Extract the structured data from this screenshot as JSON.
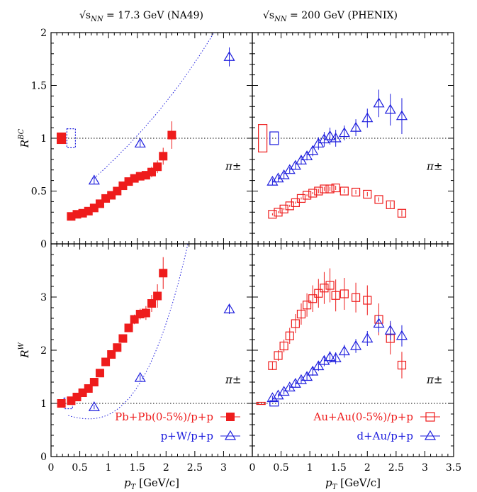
{
  "header": {
    "left_label_prefix": "√s",
    "left_label_sub": "NN",
    "left_label_suffix": " = 17.3 GeV (NA49)",
    "right_label_prefix": "√s",
    "right_label_sub": "NN",
    "right_label_suffix": " = 200 GeV (PHENIX)"
  },
  "particle_label": "π±",
  "colors": {
    "red": "#ee1c1c",
    "blue": "#1c1cdd"
  },
  "chart_data": [
    {
      "panel": "top-left",
      "type": "scatter",
      "ylabel_main": "R",
      "ylabel_sup": "BC",
      "xlim": [
        0,
        3.5
      ],
      "ylim": [
        0,
        2
      ],
      "yticks": [
        "0",
        "0.5",
        "1",
        "1.5",
        "2"
      ],
      "reference_line": 1,
      "series": [
        {
          "marker": "filled-square",
          "color": "red",
          "points": [
            [
              0.35,
              0.26
            ],
            [
              0.45,
              0.28
            ],
            [
              0.55,
              0.29
            ],
            [
              0.65,
              0.31
            ],
            [
              0.75,
              0.34
            ],
            [
              0.85,
              0.38
            ],
            [
              0.95,
              0.43
            ],
            [
              1.05,
              0.46
            ],
            [
              1.15,
              0.5
            ],
            [
              1.25,
              0.55
            ],
            [
              1.35,
              0.59
            ],
            [
              1.45,
              0.62
            ],
            [
              1.55,
              0.64
            ],
            [
              1.65,
              0.65
            ],
            [
              1.75,
              0.68
            ],
            [
              1.85,
              0.73
            ],
            [
              1.95,
              0.83
            ],
            [
              2.1,
              1.03
            ]
          ],
          "errors": [
            0.02,
            0.02,
            0.02,
            0.02,
            0.02,
            0.02,
            0.02,
            0.02,
            0.02,
            0.02,
            0.03,
            0.03,
            0.03,
            0.04,
            0.05,
            0.06,
            0.08,
            0.13
          ]
        },
        {
          "marker": "open-triangle",
          "color": "blue",
          "points": [
            [
              0.75,
              0.6
            ],
            [
              1.55,
              0.95
            ],
            [
              3.1,
              1.77
            ]
          ],
          "errors": [
            0.03,
            0.03,
            0.09
          ]
        }
      ],
      "fit_curve": {
        "color": "blue",
        "from": 0.75,
        "to": 3.5,
        "a": 0.26,
        "b": 0.47,
        "c": 0.018
      },
      "norm_boxes": [
        {
          "x": 0.18,
          "half_height": 0.05,
          "style": "filled",
          "color": "red"
        },
        {
          "x": 0.35,
          "half_height": 0.09,
          "style": "dotted",
          "color": "blue"
        }
      ]
    },
    {
      "panel": "top-right",
      "type": "scatter",
      "xlim": [
        0,
        3.5
      ],
      "ylim": [
        0,
        2
      ],
      "reference_line": 1,
      "series": [
        {
          "marker": "open-triangle",
          "color": "blue",
          "points": [
            [
              0.35,
              0.59
            ],
            [
              0.45,
              0.62
            ],
            [
              0.55,
              0.65
            ],
            [
              0.65,
              0.7
            ],
            [
              0.75,
              0.74
            ],
            [
              0.85,
              0.79
            ],
            [
              0.95,
              0.83
            ],
            [
              1.05,
              0.88
            ],
            [
              1.15,
              0.95
            ],
            [
              1.25,
              0.99
            ],
            [
              1.35,
              1.02
            ],
            [
              1.45,
              1.0
            ],
            [
              1.6,
              1.05
            ],
            [
              1.8,
              1.1
            ],
            [
              2.0,
              1.19
            ],
            [
              2.2,
              1.33
            ],
            [
              2.4,
              1.27
            ],
            [
              2.6,
              1.21
            ]
          ],
          "errors": [
            0.03,
            0.03,
            0.03,
            0.03,
            0.03,
            0.04,
            0.04,
            0.05,
            0.06,
            0.07,
            0.08,
            0.08,
            0.07,
            0.08,
            0.09,
            0.13,
            0.15,
            0.17
          ]
        },
        {
          "marker": "open-square",
          "color": "red",
          "points": [
            [
              0.35,
              0.28
            ],
            [
              0.45,
              0.3
            ],
            [
              0.55,
              0.33
            ],
            [
              0.65,
              0.36
            ],
            [
              0.75,
              0.39
            ],
            [
              0.85,
              0.43
            ],
            [
              0.95,
              0.46
            ],
            [
              1.05,
              0.48
            ],
            [
              1.15,
              0.5
            ],
            [
              1.25,
              0.52
            ],
            [
              1.35,
              0.52
            ],
            [
              1.45,
              0.53
            ],
            [
              1.6,
              0.5
            ],
            [
              1.8,
              0.49
            ],
            [
              2.0,
              0.47
            ],
            [
              2.2,
              0.42
            ],
            [
              2.4,
              0.37
            ],
            [
              2.6,
              0.29
            ]
          ],
          "errors": [
            0.01,
            0.01,
            0.01,
            0.01,
            0.01,
            0.01,
            0.01,
            0.01,
            0.02,
            0.02,
            0.02,
            0.02,
            0.02,
            0.02,
            0.02,
            0.02,
            0.03,
            0.03
          ]
        }
      ],
      "norm_boxes": [
        {
          "x": 0.18,
          "half_height": 0.13,
          "style": "open",
          "color": "red"
        },
        {
          "x": 0.38,
          "half_height": 0.06,
          "style": "open",
          "color": "blue"
        }
      ]
    },
    {
      "panel": "bottom-left",
      "type": "scatter",
      "ylabel_main": "R",
      "ylabel_sup": "W",
      "xlabel_main": "p",
      "xlabel_sub": "T",
      "xlabel_unit": "[GeV/c]",
      "xlim": [
        0,
        3.5
      ],
      "ylim": [
        0,
        4
      ],
      "yticks": [
        "0",
        "1",
        "2",
        "3"
      ],
      "xticks": [
        "0",
        "0.5",
        "1",
        "1.5",
        "2",
        "2.5",
        "3",
        ""
      ],
      "reference_line": 1,
      "series": [
        {
          "name": "Pb+Pb(0-5%)/p+p",
          "marker": "filled-square",
          "color": "red",
          "points": [
            [
              0.18,
              1.0
            ],
            [
              0.35,
              1.05
            ],
            [
              0.45,
              1.12
            ],
            [
              0.55,
              1.2
            ],
            [
              0.65,
              1.28
            ],
            [
              0.75,
              1.4
            ],
            [
              0.85,
              1.57
            ],
            [
              0.95,
              1.78
            ],
            [
              1.05,
              1.92
            ],
            [
              1.15,
              2.05
            ],
            [
              1.25,
              2.22
            ],
            [
              1.35,
              2.42
            ],
            [
              1.45,
              2.58
            ],
            [
              1.55,
              2.68
            ],
            [
              1.65,
              2.7
            ],
            [
              1.75,
              2.88
            ],
            [
              1.85,
              3.02
            ],
            [
              1.95,
              3.45
            ]
          ],
          "errors": [
            0.02,
            0.03,
            0.03,
            0.03,
            0.03,
            0.03,
            0.04,
            0.04,
            0.05,
            0.05,
            0.06,
            0.08,
            0.09,
            0.1,
            0.13,
            0.16,
            0.22,
            0.3
          ]
        },
        {
          "name": "p+W/p+p",
          "marker": "open-triangle",
          "color": "blue",
          "points": [
            [
              0.75,
              0.93
            ],
            [
              1.55,
              1.48
            ],
            [
              3.1,
              2.77
            ]
          ],
          "errors": [
            0.04,
            0.05,
            0.09
          ]
        }
      ],
      "fit_curve": {
        "color": "blue",
        "from": 0.3,
        "to": 3.5,
        "a": 0.88,
        "b": -0.39,
        "c": 0.3
      },
      "norm_boxes": [
        {
          "x": 0.3,
          "half_height": 0.1,
          "style": "dotted",
          "color": "blue"
        }
      ]
    },
    {
      "panel": "bottom-right",
      "type": "scatter",
      "xlabel_main": "p",
      "xlabel_sub": "T",
      "xlabel_unit": "[GeV/c]",
      "xlim": [
        0,
        3.5
      ],
      "ylim": [
        0,
        4
      ],
      "xticks": [
        "0",
        "0.5",
        "1",
        "1.5",
        "2",
        "2.5",
        "3",
        "3.5"
      ],
      "reference_line": 1,
      "series": [
        {
          "name": "Au+Au(0-5%)/p+p",
          "marker": "open-square",
          "color": "red",
          "points": [
            [
              0.35,
              1.71
            ],
            [
              0.45,
              1.9
            ],
            [
              0.55,
              2.08
            ],
            [
              0.65,
              2.27
            ],
            [
              0.75,
              2.5
            ],
            [
              0.85,
              2.68
            ],
            [
              0.95,
              2.85
            ],
            [
              1.05,
              2.97
            ],
            [
              1.15,
              3.07
            ],
            [
              1.25,
              3.17
            ],
            [
              1.35,
              3.22
            ],
            [
              1.45,
              3.03
            ],
            [
              1.6,
              3.06
            ],
            [
              1.8,
              2.99
            ],
            [
              2.0,
              2.94
            ],
            [
              2.2,
              2.58
            ],
            [
              2.4,
              2.22
            ],
            [
              2.6,
              1.72
            ]
          ],
          "errors": [
            0.08,
            0.1,
            0.12,
            0.15,
            0.18,
            0.2,
            0.22,
            0.25,
            0.27,
            0.3,
            0.32,
            0.3,
            0.3,
            0.28,
            0.28,
            0.3,
            0.3,
            0.25
          ]
        },
        {
          "name": "d+Au/p+p",
          "marker": "open-triangle",
          "color": "blue",
          "points": [
            [
              0.35,
              1.1
            ],
            [
              0.45,
              1.15
            ],
            [
              0.55,
              1.22
            ],
            [
              0.65,
              1.3
            ],
            [
              0.75,
              1.37
            ],
            [
              0.85,
              1.44
            ],
            [
              0.95,
              1.5
            ],
            [
              1.05,
              1.6
            ],
            [
              1.15,
              1.7
            ],
            [
              1.25,
              1.8
            ],
            [
              1.35,
              1.87
            ],
            [
              1.45,
              1.85
            ],
            [
              1.6,
              1.98
            ],
            [
              1.8,
              2.08
            ],
            [
              2.0,
              2.22
            ],
            [
              2.2,
              2.5
            ],
            [
              2.4,
              2.37
            ],
            [
              2.6,
              2.27
            ]
          ],
          "errors": [
            0.04,
            0.04,
            0.05,
            0.05,
            0.06,
            0.06,
            0.07,
            0.08,
            0.09,
            0.1,
            0.11,
            0.11,
            0.12,
            0.13,
            0.14,
            0.16,
            0.18,
            0.2
          ]
        }
      ],
      "norm_boxes": [
        {
          "x": 0.15,
          "half_height": 0.02,
          "style": "open",
          "color": "red"
        },
        {
          "x": 0.38,
          "half_height": 0.05,
          "style": "open",
          "color": "blue"
        }
      ]
    }
  ]
}
